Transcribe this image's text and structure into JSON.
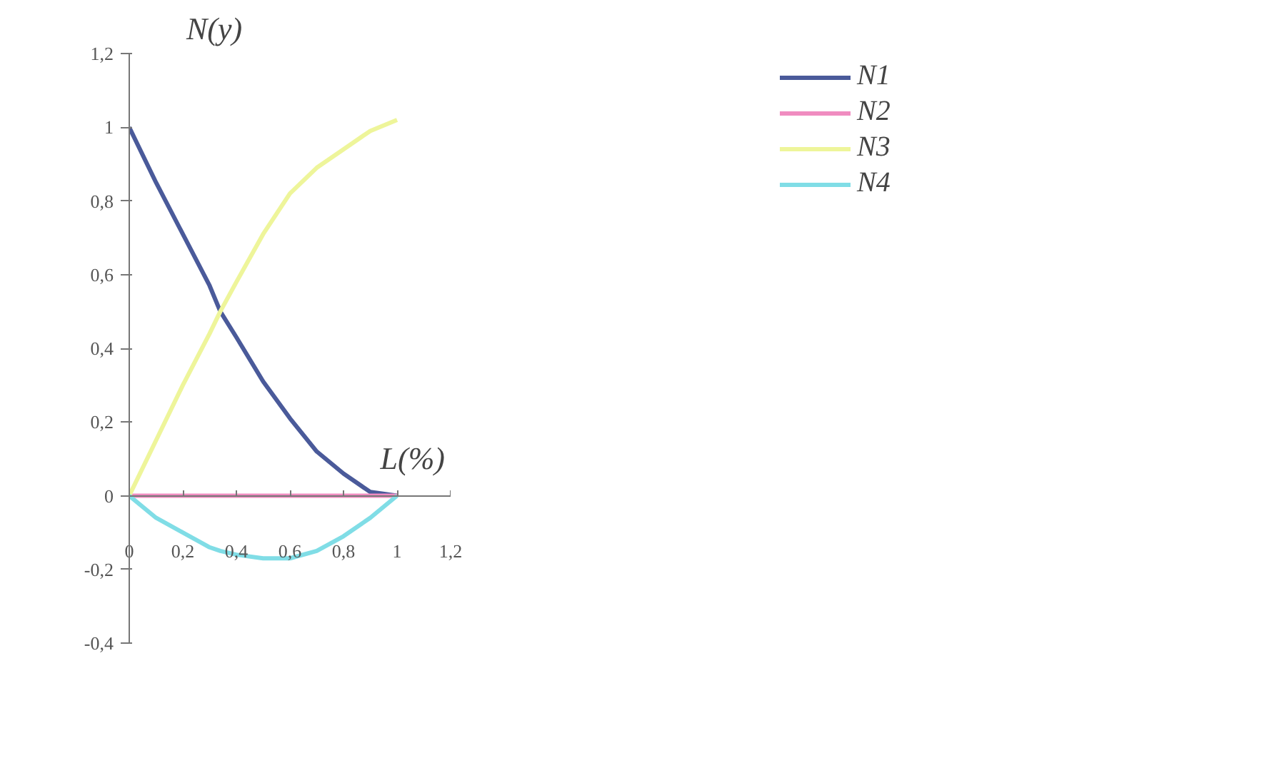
{
  "chart_data": {
    "type": "line",
    "xlabel": "L(%)",
    "ylabel": "N(y)",
    "x": [
      0,
      0.1,
      0.2,
      0.3,
      0.34,
      0.4,
      0.5,
      0.6,
      0.7,
      0.8,
      0.9,
      1
    ],
    "series": [
      {
        "name": "N1",
        "color": "#4a5a9a",
        "values": [
          1,
          0.85,
          0.71,
          0.57,
          0.5,
          0.43,
          0.31,
          0.21,
          0.12,
          0.06,
          0.01,
          0
        ]
      },
      {
        "name": "N2",
        "color": "#f08cc0",
        "values": [
          0,
          0,
          0,
          0,
          0,
          0,
          0,
          0,
          0,
          0,
          0,
          0
        ]
      },
      {
        "name": "N3",
        "color": "#eef59a",
        "values": [
          0,
          0.15,
          0.3,
          0.44,
          0.5,
          0.58,
          0.71,
          0.82,
          0.89,
          0.94,
          0.99,
          1.02
        ]
      },
      {
        "name": "N4",
        "color": "#80dde6",
        "values": [
          0,
          -0.06,
          -0.1,
          -0.14,
          -0.15,
          -0.16,
          -0.17,
          -0.17,
          -0.15,
          -0.11,
          -0.06,
          0
        ]
      }
    ],
    "xlim": [
      0,
      1.2
    ],
    "ylim": [
      -0.4,
      1.2
    ],
    "xticks": [
      0,
      {
        "value": 0.2,
        "label": "0,2"
      },
      {
        "value": 0.4,
        "label": "0,4"
      },
      {
        "value": 0.6,
        "label": "0,6"
      },
      {
        "value": 0.8,
        "label": "0,8"
      },
      1,
      {
        "value": 1.2,
        "label": "1,2"
      }
    ],
    "yticks": [
      {
        "value": -0.4,
        "label": "-0,4"
      },
      {
        "value": -0.2,
        "label": "-0,2"
      },
      0,
      {
        "value": 0.2,
        "label": "0,2"
      },
      {
        "value": 0.4,
        "label": "0,4"
      },
      {
        "value": 0.6,
        "label": "0,6"
      },
      {
        "value": 0.8,
        "label": "0,8"
      },
      1,
      {
        "value": 1.2,
        "label": "1,2"
      }
    ],
    "legend": "top right",
    "grid": false,
    "line_style": "solid"
  }
}
